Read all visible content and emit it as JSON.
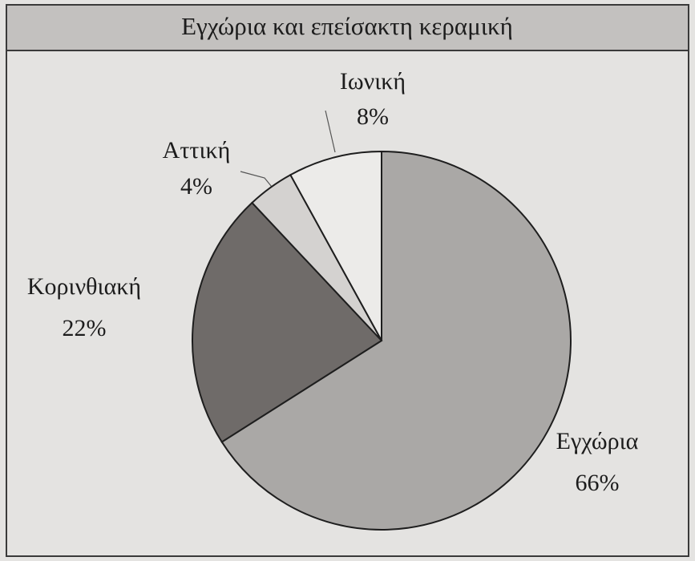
{
  "chart_data": {
    "type": "pie",
    "title": "Εγχώρια και επείσακτη κεραμική",
    "categories": [
      "Εγχώρια",
      "Κορινθιακή",
      "Αττική",
      "Ιωνική"
    ],
    "values": [
      66,
      22,
      4,
      8
    ],
    "value_labels": [
      "66%",
      "22%",
      "4%",
      "8%"
    ],
    "colors": [
      "#aaa8a6",
      "#6f6b69",
      "#d4d2d0",
      "#ecebe9"
    ]
  }
}
